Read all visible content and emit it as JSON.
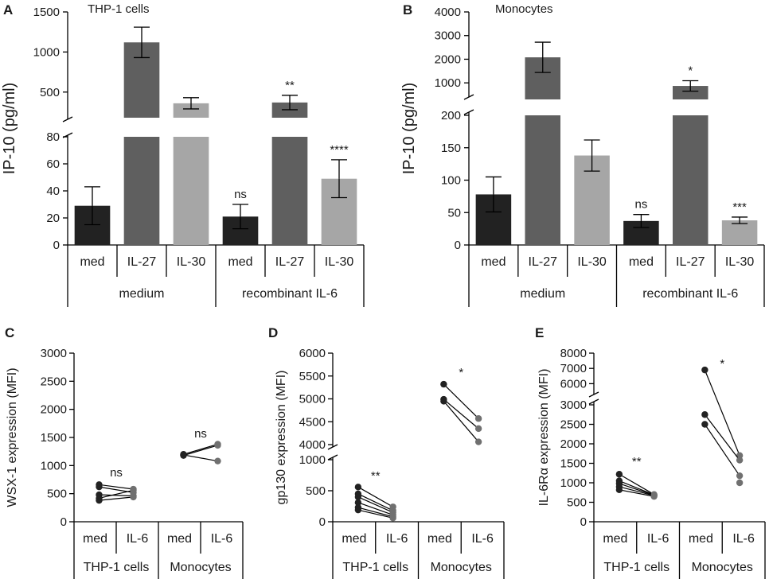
{
  "colors": {
    "med": "#222222",
    "il27": "#5f5f5f",
    "il30": "#a6a6a6",
    "dot_med": "#222222",
    "dot_il6": "#707070"
  },
  "chart_data": [
    {
      "panel": "A",
      "type": "bar",
      "title": "THP-1 cells",
      "ylabel": "IP-10 (pg/ml)",
      "categories": [
        "med",
        "IL-27",
        "IL-30",
        "med",
        "IL-27",
        "IL-30"
      ],
      "groups": [
        "medium",
        "recombinant IL-6"
      ],
      "values": [
        29,
        1120,
        360,
        21,
        370,
        49
      ],
      "errors": [
        14,
        190,
        70,
        9,
        90,
        14
      ],
      "significance": [
        "",
        "",
        "",
        "ns",
        "**",
        "****"
      ],
      "y_break": {
        "lower_ylim": [
          0,
          80
        ],
        "upper_ylim": [
          180,
          1500
        ]
      },
      "lower_ticks": [
        0,
        20,
        40,
        60,
        80
      ],
      "upper_ticks": [
        500,
        1000,
        1500
      ]
    },
    {
      "panel": "B",
      "type": "bar",
      "title": "Monocytes",
      "ylabel": "IP-10 (pg/ml)",
      "categories": [
        "med",
        "IL-27",
        "IL-30",
        "med",
        "IL-27",
        "IL-30"
      ],
      "groups": [
        "medium",
        "recombinant IL-6"
      ],
      "values": [
        78,
        2080,
        138,
        37,
        870,
        38
      ],
      "errors": [
        27,
        640,
        24,
        10,
        220,
        5
      ],
      "significance": [
        "",
        "",
        "",
        "ns",
        "*",
        "***"
      ],
      "y_break": {
        "lower_ylim": [
          0,
          200
        ],
        "upper_ylim": [
          300,
          4000
        ]
      },
      "lower_ticks": [
        0,
        50,
        100,
        150,
        200
      ],
      "upper_ticks": [
        1000,
        2000,
        3000,
        4000
      ]
    },
    {
      "panel": "C",
      "type": "line",
      "ylabel": "WSX-1 expression (MFI)",
      "categories": [
        "med",
        "IL-6",
        "med",
        "IL-6"
      ],
      "groups": [
        "THP-1 cells",
        "Monocytes"
      ],
      "ylim": [
        0,
        3000
      ],
      "ticks": [
        0,
        500,
        1000,
        1500,
        2000,
        2500,
        3000
      ],
      "pairs": [
        [
          [
            660,
            580
          ],
          [
            620,
            520
          ],
          [
            480,
            460
          ],
          [
            420,
            560
          ],
          [
            380,
            440
          ]
        ],
        [
          [
            1200,
            1380
          ],
          [
            1190,
            1080
          ],
          [
            1180,
            1360
          ]
        ]
      ],
      "significance": [
        "ns",
        "ns"
      ]
    },
    {
      "panel": "D",
      "type": "line",
      "ylabel": "gp130 expression (MFI)",
      "categories": [
        "med",
        "IL-6",
        "med",
        "IL-6"
      ],
      "groups": [
        "THP-1 cells",
        "Monocytes"
      ],
      "y_break": {
        "lower_ylim": [
          0,
          1000
        ],
        "upper_ylim": [
          4000,
          6000
        ]
      },
      "lower_ticks": [
        0,
        500,
        1000
      ],
      "upper_ticks": [
        4000,
        4500,
        5000,
        5500,
        6000
      ],
      "pairs": [
        [
          [
            560,
            240
          ],
          [
            450,
            180
          ],
          [
            400,
            150
          ],
          [
            310,
            110
          ],
          [
            230,
            80
          ],
          [
            190,
            60
          ]
        ],
        [
          [
            5320,
            4570
          ],
          [
            4990,
            4350
          ],
          [
            4950,
            4060
          ]
        ]
      ],
      "significance": [
        "**",
        "*"
      ]
    },
    {
      "panel": "E",
      "type": "line",
      "ylabel": "IL-6Rα expression (MFI)",
      "categories": [
        "med",
        "IL-6",
        "med",
        "IL-6"
      ],
      "groups": [
        "THP-1 cells",
        "Monocytes"
      ],
      "y_break": {
        "lower_ylim": [
          0,
          3000
        ],
        "upper_ylim": [
          5500,
          8000
        ]
      },
      "lower_ticks": [
        0,
        500,
        1000,
        1500,
        2000,
        2500,
        3000
      ],
      "upper_ticks": [
        6000,
        7000,
        8000
      ],
      "pairs": [
        [
          [
            1220,
            700
          ],
          [
            1050,
            690
          ],
          [
            980,
            680
          ],
          [
            900,
            670
          ],
          [
            820,
            650
          ]
        ],
        [
          [
            6900,
            1700
          ],
          [
            2750,
            1580
          ],
          [
            2500,
            1180
          ]
        ],
        [
          null,
          1000
        ]
      ],
      "significance": [
        "**",
        "*"
      ]
    }
  ]
}
